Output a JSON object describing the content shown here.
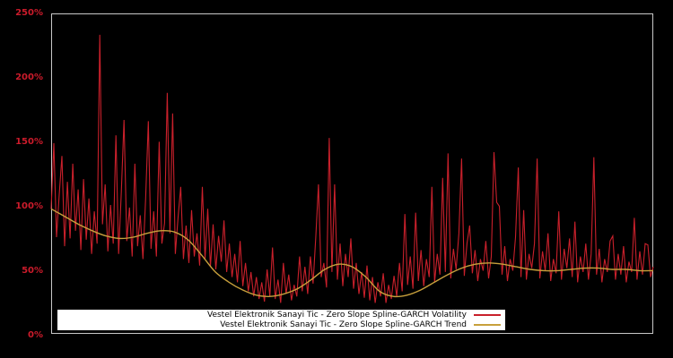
{
  "chart_data": {
    "type": "line",
    "title": "",
    "xlabel": "",
    "ylabel": "",
    "x_axis_labels_visible": false,
    "ylim": [
      0,
      250
    ],
    "yticks": [
      "0%",
      "50%",
      "100%",
      "150%",
      "200%",
      "250%"
    ],
    "ytick_values": [
      0,
      50,
      100,
      150,
      200,
      250
    ],
    "grid": false,
    "unit": "percent",
    "background_color": "#000000",
    "plot_border_color": "#c8c8c8",
    "axis_tick_color": "#cc1b2b",
    "legend": {
      "position": "bottom-inside",
      "background": "#ffffff",
      "text_color": "#000000"
    },
    "series": [
      {
        "name": "Vestel Elektronik Sanayi Tic - Zero Slope Spline-GARCH Volatility",
        "color": "#c9202b",
        "style": "jagged",
        "values": [
          97,
          148,
          75,
          108,
          138,
          68,
          118,
          74,
          132,
          80,
          112,
          65,
          120,
          73,
          105,
          62,
          95,
          70,
          232,
          85,
          116,
          64,
          100,
          70,
          154,
          62,
          110,
          166,
          72,
          98,
          60,
          132,
          68,
          92,
          58,
          105,
          165,
          66,
          95,
          60,
          149,
          70,
          86,
          187,
          78,
          171,
          62,
          90,
          114,
          58,
          84,
          55,
          96,
          60,
          78,
          53,
          114,
          58,
          97,
          52,
          85,
          50,
          76,
          56,
          88,
          48,
          70,
          44,
          62,
          40,
          72,
          37,
          55,
          33,
          48,
          29,
          44,
          27,
          40,
          25,
          50,
          29,
          67,
          27,
          42,
          24,
          55,
          31,
          46,
          26,
          38,
          29,
          60,
          33,
          52,
          31,
          60,
          39,
          75,
          116,
          44,
          55,
          36,
          152,
          48,
          116,
          42,
          70,
          37,
          62,
          44,
          74,
          35,
          55,
          31,
          48,
          28,
          53,
          26,
          44,
          24,
          40,
          29,
          47,
          24,
          38,
          27,
          45,
          29,
          55,
          33,
          93,
          38,
          60,
          35,
          94,
          41,
          65,
          37,
          58,
          44,
          114,
          40,
          62,
          46,
          121,
          48,
          140,
          43,
          66,
          50,
          78,
          136,
          45,
          70,
          84,
          47,
          65,
          41,
          58,
          49,
          72,
          43,
          60,
          141,
          102,
          99,
          46,
          68,
          41,
          58,
          49,
          75,
          129,
          44,
          96,
          42,
          62,
          51,
          70,
          136,
          43,
          64,
          49,
          78,
          41,
          58,
          47,
          95,
          42,
          66,
          51,
          74,
          44,
          87,
          40,
          60,
          48,
          70,
          42,
          62,
          137,
          46,
          66,
          40,
          58,
          48,
          72,
          76,
          42,
          62,
          46,
          68,
          40,
          56,
          48,
          90,
          42,
          64,
          46,
          70,
          69,
          44,
          52
        ]
      },
      {
        "name": "Vestel Elektronik Sanayi Tic - Zero Slope Spline-GARCH Trend",
        "color": "#c8a03c",
        "style": "smooth",
        "values": [
          97,
          91,
          85,
          80,
          76,
          74,
          75,
          78,
          80,
          79,
          73,
          61,
          48,
          40,
          34,
          30,
          29,
          31,
          35,
          42,
          50,
          54,
          52,
          44,
          33,
          29,
          30,
          34,
          40,
          46,
          51,
          54,
          55,
          54,
          52,
          50,
          49,
          49,
          50,
          51,
          51,
          50,
          50,
          49,
          49
        ]
      }
    ]
  }
}
